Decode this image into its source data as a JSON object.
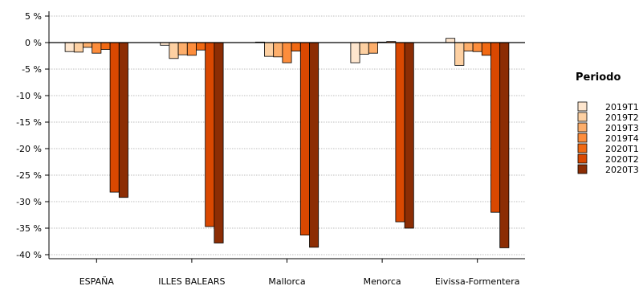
{
  "chart_data": {
    "type": "bar",
    "title": "",
    "xlabel": "",
    "ylabel": "",
    "ylim": [
      -40,
      5
    ],
    "yticks": [
      5,
      0,
      -5,
      -10,
      -15,
      -20,
      -25,
      -30,
      -35,
      -40
    ],
    "ytick_labels": [
      "5 %",
      "0 %",
      "-5 %",
      "-10 %",
      "-15 %",
      "-20 %",
      "-25 %",
      "-30 %",
      "-35 %",
      "-40 %"
    ],
    "grid": true,
    "legend_title": "Periodo",
    "legend_position": "right",
    "categories": [
      "ESPAÑA",
      "ILLES BALEARS",
      "Mallorca",
      "Menorca",
      "Eivissa-Formentera"
    ],
    "series": [
      {
        "name": "2019T1",
        "color": "#fee6ce",
        "values": [
          -1.7,
          -0.5,
          0.1,
          -3.8,
          0.8
        ]
      },
      {
        "name": "2019T2",
        "color": "#fdd0a2",
        "values": [
          -1.8,
          -3.0,
          -2.6,
          -2.2,
          -4.3
        ]
      },
      {
        "name": "2019T3",
        "color": "#fdae6b",
        "values": [
          -0.9,
          -2.3,
          -2.7,
          -2.0,
          -1.6
        ]
      },
      {
        "name": "2019T4",
        "color": "#fd8d3c",
        "values": [
          -2.0,
          -2.4,
          -3.8,
          0.1,
          -1.7
        ]
      },
      {
        "name": "2020T1",
        "color": "#f16913",
        "values": [
          -1.3,
          -1.4,
          -1.6,
          0.2,
          -2.4
        ]
      },
      {
        "name": "2020T2",
        "color": "#d94801",
        "values": [
          -28.2,
          -34.7,
          -36.3,
          -33.8,
          -32.0
        ]
      },
      {
        "name": "2020T3",
        "color": "#8c2d04",
        "values": [
          -29.2,
          -37.8,
          -38.6,
          -35.0,
          -38.7
        ]
      }
    ]
  }
}
